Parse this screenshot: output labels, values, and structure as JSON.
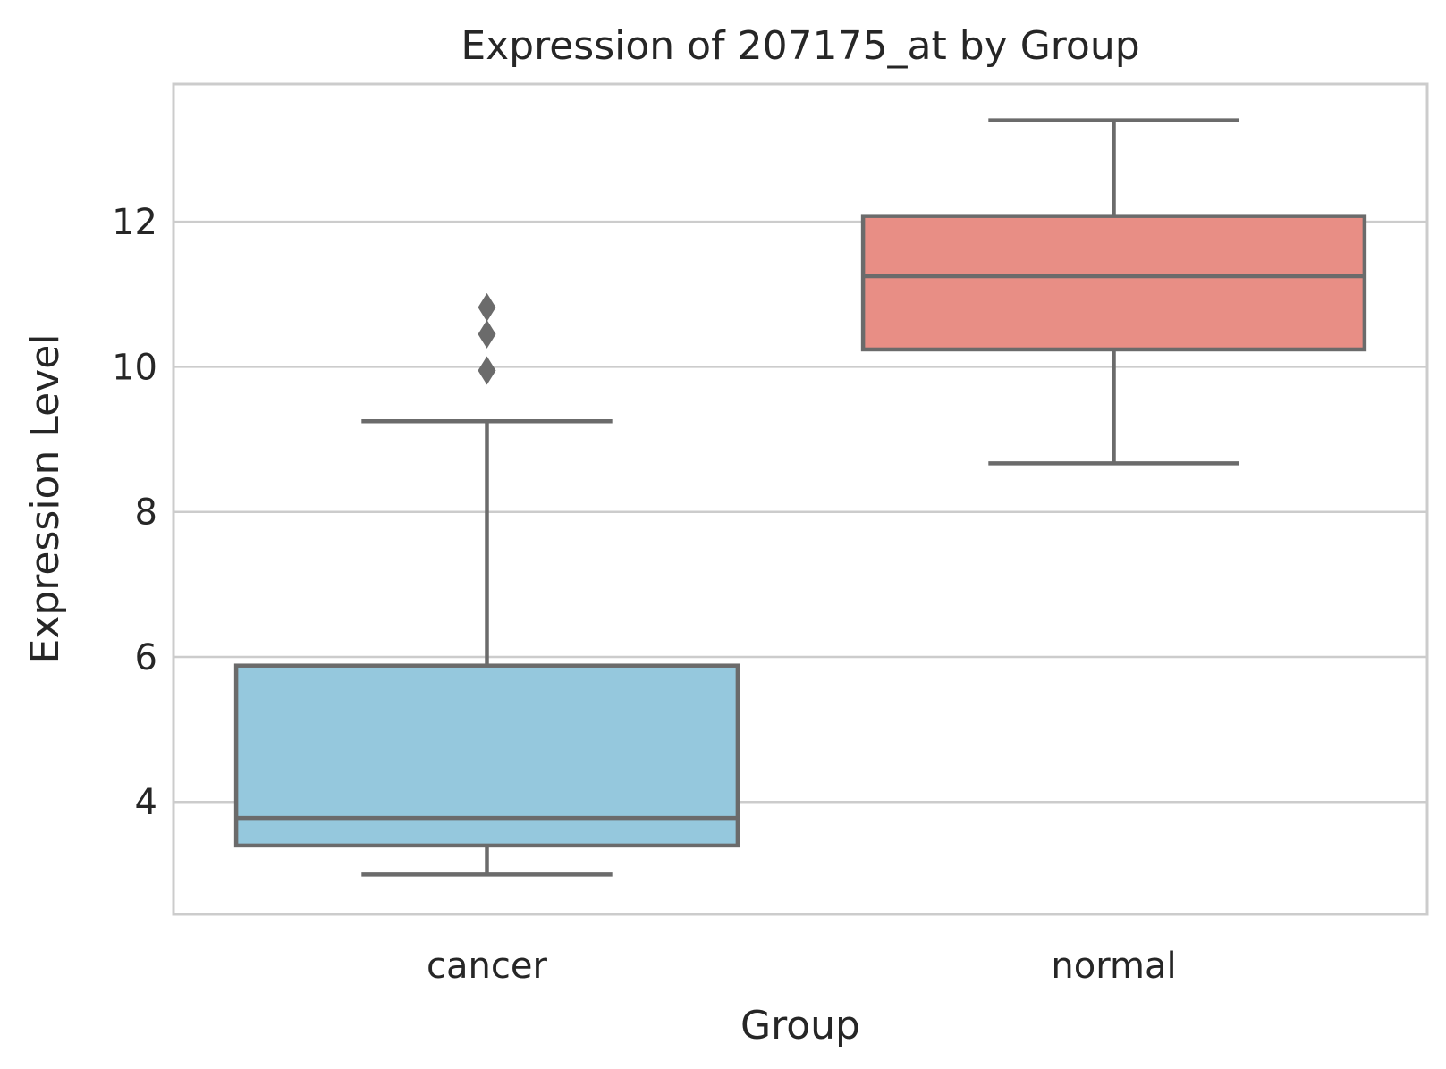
{
  "chart_data": {
    "type": "box",
    "title": "Expression of 207175_at by Group",
    "xlabel": "Group",
    "ylabel": "Expression Level",
    "ylim": [
      2.45,
      13.9
    ],
    "yticks": [
      4,
      6,
      8,
      10,
      12
    ],
    "grid": "y",
    "categories": [
      "cancer",
      "normal"
    ],
    "boxes": [
      {
        "category": "cancer",
        "whisker_low": 3.0,
        "q1": 3.4,
        "median": 3.78,
        "q3": 5.88,
        "whisker_high": 9.25,
        "outliers": [
          9.95,
          10.45,
          10.82
        ],
        "color": "#95c8dd"
      },
      {
        "category": "normal",
        "whisker_low": 8.67,
        "q1": 10.24,
        "median": 11.25,
        "q3": 12.08,
        "whisker_high": 13.4,
        "outliers": [],
        "color": "#e88e85"
      }
    ],
    "colors": {
      "line": "#6b6b6b",
      "grid": "#cccccc",
      "frame": "#cccccc"
    }
  }
}
